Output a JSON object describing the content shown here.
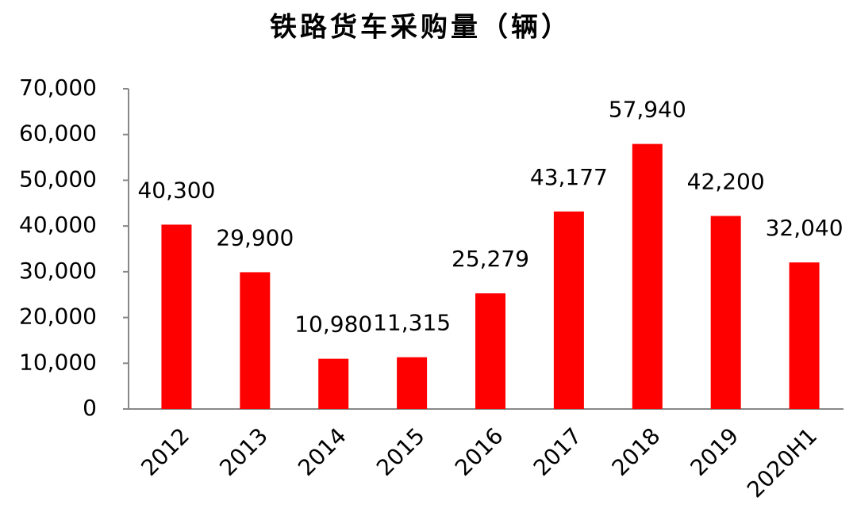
{
  "chart_data": {
    "type": "bar",
    "title": "铁路货车采购量（辆）",
    "categories": [
      "2012",
      "2013",
      "2014",
      "2015",
      "2016",
      "2017",
      "2018",
      "2019",
      "2020H1"
    ],
    "values": [
      40300,
      29900,
      10980,
      11315,
      25279,
      43177,
      57940,
      42200,
      32040
    ],
    "value_labels": [
      "40,300",
      "29,900",
      "10,980",
      "11,315",
      "25,279",
      "43,177",
      "57,940",
      "42,200",
      "32,040"
    ],
    "color": "#ff0000",
    "ylim": [
      0,
      70000
    ],
    "yticks": [
      0,
      {
        "value": 10000,
        "label": "10,000"
      },
      {
        "value": 20000,
        "label": "20,000"
      },
      {
        "value": 30000,
        "label": "30,000"
      },
      {
        "value": 40000,
        "label": "40,000"
      },
      {
        "value": 50000,
        "label": "50,000"
      },
      {
        "value": 60000,
        "label": "60,000"
      },
      {
        "value": 70000,
        "label": "70,000"
      }
    ],
    "grid": false
  }
}
